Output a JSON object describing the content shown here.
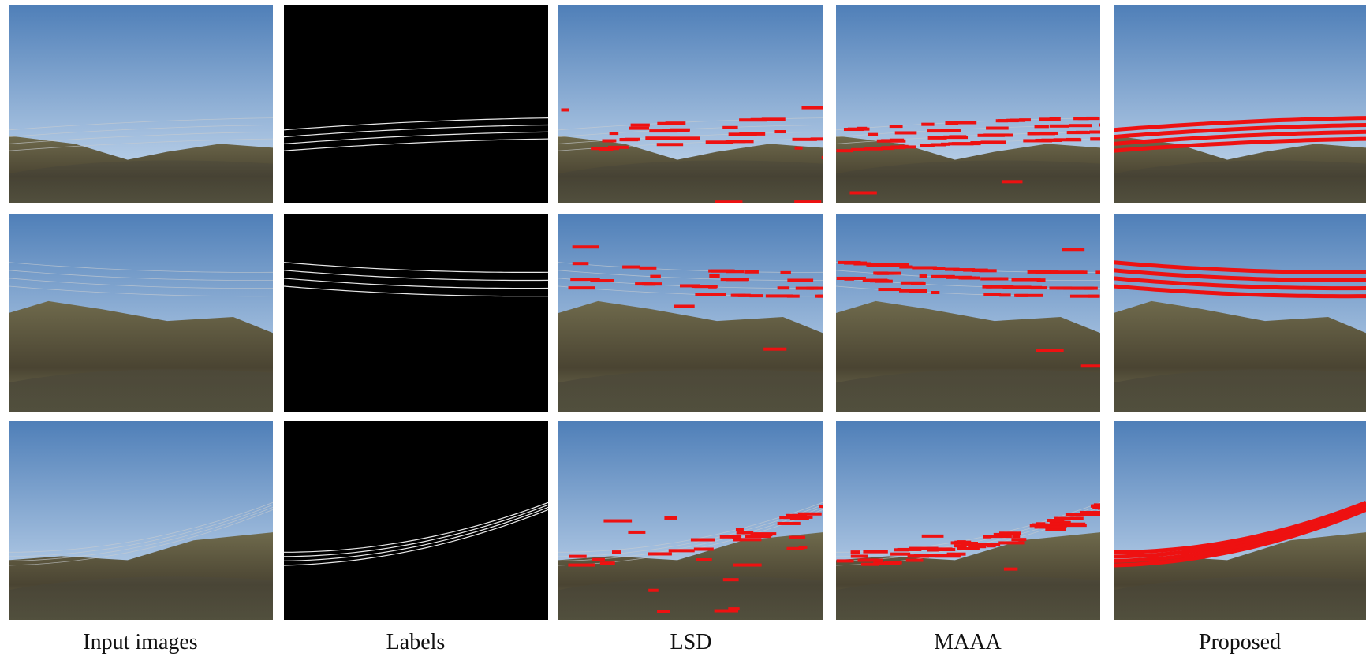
{
  "columns": [
    "Input images",
    "Labels",
    "LSD",
    "MAAA",
    "Proposed"
  ]
}
